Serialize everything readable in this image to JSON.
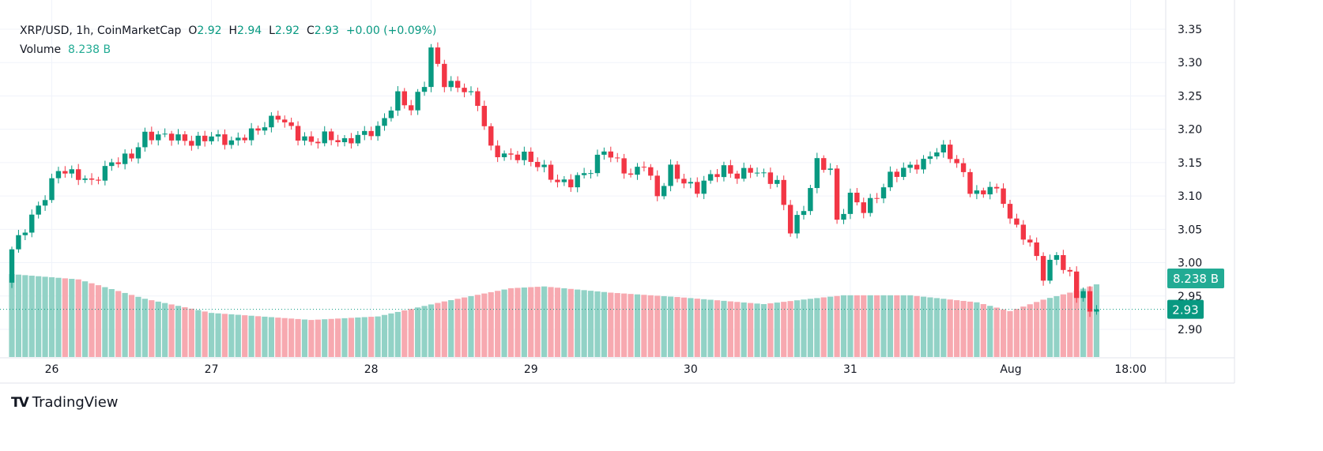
{
  "legend": {
    "symbol": "XRP/USD, 1h, CoinMarketCap",
    "o_label": "O",
    "o": "2.92",
    "h_label": "H",
    "h": "2.94",
    "l_label": "L",
    "l": "2.92",
    "c_label": "C",
    "c": "2.93",
    "change": "+0.00 (+0.09%)",
    "volume_label": "Volume",
    "volume": "8.238 B"
  },
  "brand": "TradingView",
  "colors": {
    "up": "#089981",
    "down": "#f23645",
    "up_vol": "#92d2c6",
    "down_vol": "#f7a9b0",
    "volume_badge": "#22ab94"
  },
  "chart_data": {
    "type": "candlestick",
    "title": "XRP/USD, 1h, CoinMarketCap",
    "y_ticks": [
      "3.35",
      "3.30",
      "3.25",
      "3.20",
      "3.15",
      "3.10",
      "3.05",
      "3.00",
      "2.95",
      "2.90"
    ],
    "ylim": [
      2.87,
      3.37
    ],
    "x_ticks": [
      {
        "label": "26",
        "index": 6
      },
      {
        "label": "27",
        "index": 30
      },
      {
        "label": "28",
        "index": 54
      },
      {
        "label": "29",
        "index": 78
      },
      {
        "label": "30",
        "index": 102
      },
      {
        "label": "31",
        "index": 126
      },
      {
        "label": "Aug",
        "index": 150
      },
      {
        "label": "18:00",
        "index": 168
      }
    ],
    "candle_count": 164,
    "close_keypoints": [
      [
        0,
        3.02
      ],
      [
        5,
        3.1
      ],
      [
        7,
        3.14
      ],
      [
        10,
        3.13
      ],
      [
        12,
        3.12
      ],
      [
        15,
        3.15
      ],
      [
        18,
        3.16
      ],
      [
        20,
        3.19
      ],
      [
        24,
        3.19
      ],
      [
        27,
        3.18
      ],
      [
        30,
        3.19
      ],
      [
        33,
        3.18
      ],
      [
        37,
        3.2
      ],
      [
        40,
        3.22
      ],
      [
        43,
        3.19
      ],
      [
        45,
        3.18
      ],
      [
        47,
        3.19
      ],
      [
        50,
        3.18
      ],
      [
        52,
        3.19
      ],
      [
        55,
        3.2
      ],
      [
        58,
        3.25
      ],
      [
        60,
        3.23
      ],
      [
        62,
        3.27
      ],
      [
        63,
        3.32
      ],
      [
        65,
        3.27
      ],
      [
        68,
        3.26
      ],
      [
        70,
        3.24
      ],
      [
        72,
        3.17
      ],
      [
        74,
        3.16
      ],
      [
        77,
        3.16
      ],
      [
        80,
        3.14
      ],
      [
        82,
        3.12
      ],
      [
        84,
        3.12
      ],
      [
        87,
        3.14
      ],
      [
        89,
        3.17
      ],
      [
        91,
        3.15
      ],
      [
        93,
        3.13
      ],
      [
        95,
        3.15
      ],
      [
        97,
        3.1
      ],
      [
        99,
        3.14
      ],
      [
        101,
        3.12
      ],
      [
        103,
        3.11
      ],
      [
        105,
        3.13
      ],
      [
        107,
        3.14
      ],
      [
        109,
        3.13
      ],
      [
        111,
        3.14
      ],
      [
        113,
        3.13
      ],
      [
        115,
        3.12
      ],
      [
        117,
        3.05
      ],
      [
        119,
        3.08
      ],
      [
        121,
        3.15
      ],
      [
        123,
        3.14
      ],
      [
        124,
        3.06
      ],
      [
        126,
        3.1
      ],
      [
        128,
        3.08
      ],
      [
        130,
        3.1
      ],
      [
        132,
        3.13
      ],
      [
        134,
        3.14
      ],
      [
        137,
        3.15
      ],
      [
        139,
        3.17
      ],
      [
        140,
        3.17
      ],
      [
        142,
        3.15
      ],
      [
        144,
        3.11
      ],
      [
        146,
        3.1
      ],
      [
        147,
        3.12
      ],
      [
        149,
        3.09
      ],
      [
        151,
        3.05
      ],
      [
        153,
        3.03
      ],
      [
        155,
        2.98
      ],
      [
        156,
        3.0
      ],
      [
        157,
        3.01
      ],
      [
        159,
        2.98
      ],
      [
        160,
        2.95
      ],
      [
        161,
        2.96
      ],
      [
        162,
        2.92
      ],
      [
        163,
        2.93
      ]
    ],
    "volume_keypoints_billions": [
      [
        0,
        9.4
      ],
      [
        10,
        8.8
      ],
      [
        20,
        6.6
      ],
      [
        30,
        5.0
      ],
      [
        45,
        4.2
      ],
      [
        55,
        4.6
      ],
      [
        65,
        6.3
      ],
      [
        75,
        7.8
      ],
      [
        80,
        8.0
      ],
      [
        90,
        7.3
      ],
      [
        100,
        6.8
      ],
      [
        113,
        6.0
      ],
      [
        120,
        6.6
      ],
      [
        125,
        7.0
      ],
      [
        135,
        7.0
      ],
      [
        145,
        6.2
      ],
      [
        150,
        5.2
      ],
      [
        155,
        6.5
      ],
      [
        160,
        7.5
      ],
      [
        163,
        8.238
      ]
    ],
    "last_price": "2.93",
    "last_volume": "8.238 B"
  }
}
